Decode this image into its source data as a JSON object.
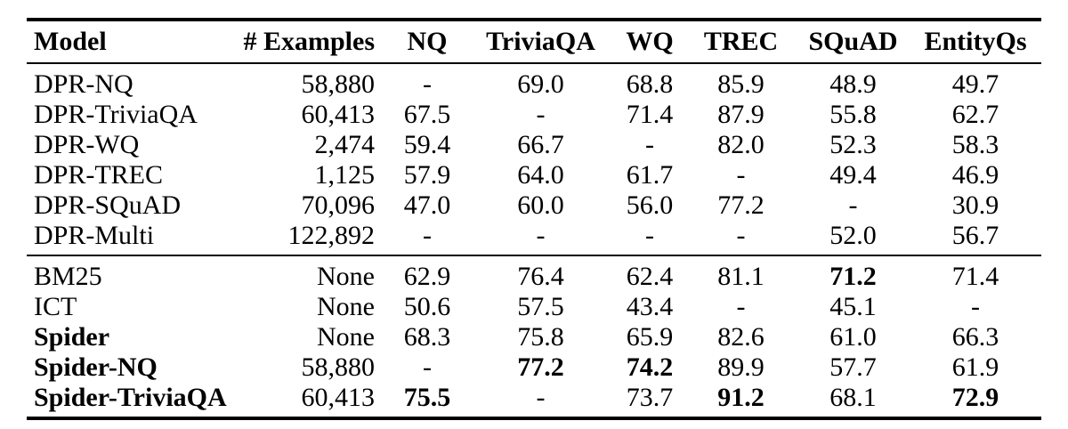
{
  "table": {
    "columns": [
      {
        "key": "model",
        "label": "Model",
        "align": "left"
      },
      {
        "key": "examples",
        "label": "# Examples",
        "align": "right"
      },
      {
        "key": "nq",
        "label": "NQ",
        "align": "center"
      },
      {
        "key": "triviaqa",
        "label": "TriviaQA",
        "align": "center"
      },
      {
        "key": "wq",
        "label": "WQ",
        "align": "center"
      },
      {
        "key": "trec",
        "label": "TREC",
        "align": "center"
      },
      {
        "key": "squad",
        "label": "SQuAD",
        "align": "center"
      },
      {
        "key": "entityqs",
        "label": "EntityQs",
        "align": "center"
      }
    ],
    "sections": [
      {
        "name": "dpr-supervised",
        "rows": [
          {
            "cells": [
              {
                "t": "DPR-NQ"
              },
              {
                "t": "58,880"
              },
              {
                "t": "-"
              },
              {
                "t": "69.0"
              },
              {
                "t": "68.8"
              },
              {
                "t": "85.9"
              },
              {
                "t": "48.9"
              },
              {
                "t": "49.7"
              }
            ]
          },
          {
            "cells": [
              {
                "t": "DPR-TriviaQA"
              },
              {
                "t": "60,413"
              },
              {
                "t": "67.5"
              },
              {
                "t": "-"
              },
              {
                "t": "71.4"
              },
              {
                "t": "87.9"
              },
              {
                "t": "55.8"
              },
              {
                "t": "62.7"
              }
            ]
          },
          {
            "cells": [
              {
                "t": "DPR-WQ"
              },
              {
                "t": "2,474"
              },
              {
                "t": "59.4"
              },
              {
                "t": "66.7"
              },
              {
                "t": "-"
              },
              {
                "t": "82.0"
              },
              {
                "t": "52.3"
              },
              {
                "t": "58.3"
              }
            ]
          },
          {
            "cells": [
              {
                "t": "DPR-TREC"
              },
              {
                "t": "1,125"
              },
              {
                "t": "57.9"
              },
              {
                "t": "64.0"
              },
              {
                "t": "61.7"
              },
              {
                "t": "-"
              },
              {
                "t": "49.4"
              },
              {
                "t": "46.9"
              }
            ]
          },
          {
            "cells": [
              {
                "t": "DPR-SQuAD"
              },
              {
                "t": "70,096"
              },
              {
                "t": "47.0"
              },
              {
                "t": "60.0"
              },
              {
                "t": "56.0"
              },
              {
                "t": "77.2"
              },
              {
                "t": "-"
              },
              {
                "t": "30.9"
              }
            ]
          },
          {
            "cells": [
              {
                "t": "DPR-Multi"
              },
              {
                "t": "122,892"
              },
              {
                "t": "-"
              },
              {
                "t": "-"
              },
              {
                "t": "-"
              },
              {
                "t": "-"
              },
              {
                "t": "52.0"
              },
              {
                "t": "56.7"
              }
            ]
          }
        ]
      },
      {
        "name": "unsupervised-and-spider",
        "rows": [
          {
            "cells": [
              {
                "t": "BM25"
              },
              {
                "t": "None"
              },
              {
                "t": "62.9"
              },
              {
                "t": "76.4"
              },
              {
                "t": "62.4"
              },
              {
                "t": "81.1"
              },
              {
                "t": "71.2",
                "b": true
              },
              {
                "t": "71.4"
              }
            ]
          },
          {
            "cells": [
              {
                "t": "ICT"
              },
              {
                "t": "None"
              },
              {
                "t": "50.6"
              },
              {
                "t": "57.5"
              },
              {
                "t": "43.4"
              },
              {
                "t": "-"
              },
              {
                "t": "45.1"
              },
              {
                "t": "-"
              }
            ]
          },
          {
            "cells": [
              {
                "t": "Spider",
                "b": true
              },
              {
                "t": "None"
              },
              {
                "t": "68.3"
              },
              {
                "t": "75.8"
              },
              {
                "t": "65.9"
              },
              {
                "t": "82.6"
              },
              {
                "t": "61.0"
              },
              {
                "t": "66.3"
              }
            ]
          },
          {
            "cells": [
              {
                "t": "Spider-NQ",
                "b": true
              },
              {
                "t": "58,880"
              },
              {
                "t": "-"
              },
              {
                "t": "77.2",
                "b": true
              },
              {
                "t": "74.2",
                "b": true
              },
              {
                "t": "89.9"
              },
              {
                "t": "57.7"
              },
              {
                "t": "61.9"
              }
            ]
          },
          {
            "cells": [
              {
                "t": "Spider-TriviaQA",
                "b": true
              },
              {
                "t": "60,413"
              },
              {
                "t": "75.5",
                "b": true
              },
              {
                "t": "-"
              },
              {
                "t": "73.7"
              },
              {
                "t": "91.2",
                "b": true
              },
              {
                "t": "68.1"
              },
              {
                "t": "72.9",
                "b": true
              }
            ]
          }
        ]
      }
    ],
    "text_color": "#000000",
    "background_color": "#ffffff"
  }
}
